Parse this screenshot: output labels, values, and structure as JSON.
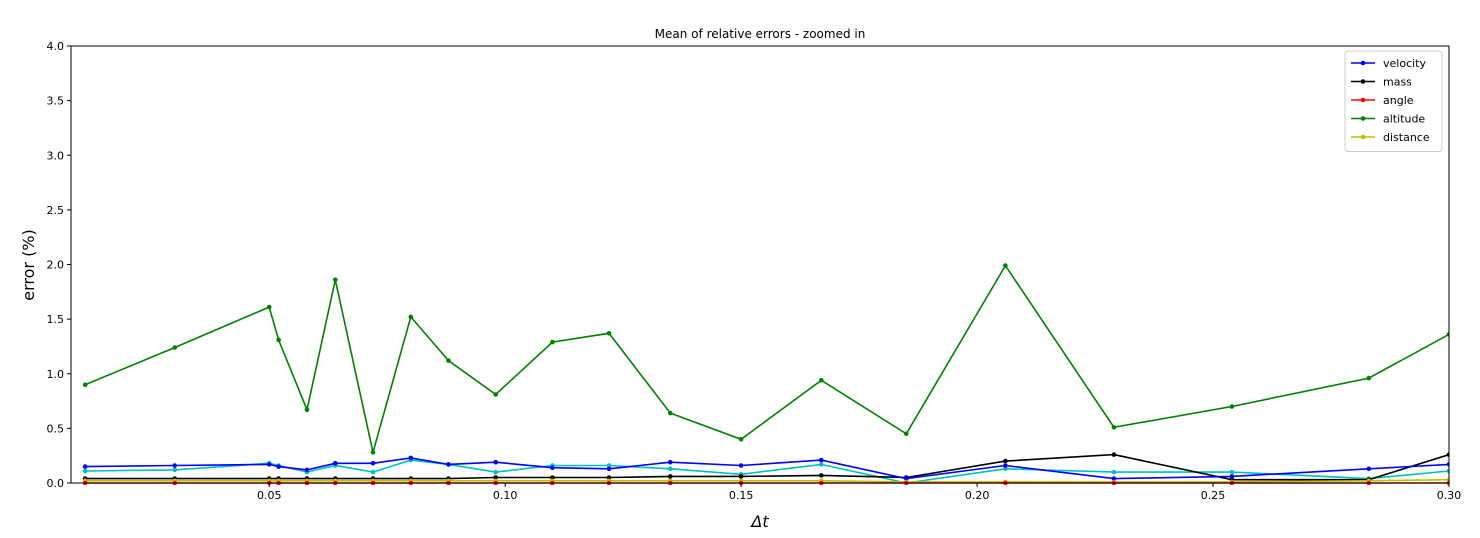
{
  "chart_data": {
    "type": "line",
    "title": "Mean of relative errors - zoomed in",
    "xlabel": "Δt",
    "ylabel": "error (%)",
    "xlim": [
      0.008,
      0.3
    ],
    "ylim": [
      0.0,
      4.0
    ],
    "xticks": [
      0.05,
      0.1,
      0.15,
      0.2,
      0.25,
      0.3
    ],
    "xtick_labels": [
      "0.05",
      "0.10",
      "0.15",
      "0.20",
      "0.25",
      "0.30"
    ],
    "yticks": [
      0.0,
      0.5,
      1.0,
      1.5,
      2.0,
      2.5,
      3.0,
      3.5,
      4.0
    ],
    "ytick_labels": [
      "0.0",
      "0.5",
      "1.0",
      "1.5",
      "2.0",
      "2.5",
      "3.0",
      "3.5",
      "4.0"
    ],
    "grid": false,
    "legend_position": "top-right",
    "x": [
      0.011,
      0.03,
      0.05,
      0.052,
      0.058,
      0.064,
      0.072,
      0.08,
      0.088,
      0.098,
      0.11,
      0.122,
      0.135,
      0.15,
      0.167,
      0.185,
      0.206,
      0.229,
      0.254,
      0.283,
      0.3
    ],
    "series": [
      {
        "name": "velocity",
        "color": "#0000ff",
        "in_legend": true,
        "values": [
          0.15,
          0.16,
          0.17,
          0.15,
          0.12,
          0.18,
          0.18,
          0.23,
          0.17,
          0.19,
          0.14,
          0.13,
          0.19,
          0.16,
          0.21,
          0.04,
          0.16,
          0.04,
          0.06,
          0.13,
          0.17
        ]
      },
      {
        "name": "mass",
        "color": "#000000",
        "in_legend": true,
        "values": [
          0.04,
          0.04,
          0.04,
          0.04,
          0.04,
          0.04,
          0.04,
          0.04,
          0.04,
          0.05,
          0.05,
          0.05,
          0.06,
          0.06,
          0.07,
          0.05,
          0.2,
          0.26,
          0.03,
          0.03,
          0.26
        ]
      },
      {
        "name": "angle",
        "color": "#ff0000",
        "in_legend": true,
        "values": [
          0.0,
          0.0,
          0.0,
          0.0,
          0.0,
          0.0,
          0.0,
          0.0,
          0.0,
          0.0,
          0.0,
          0.0,
          0.0,
          0.0,
          0.0,
          0.0,
          0.0,
          0.0,
          0.0,
          0.0,
          0.0
        ]
      },
      {
        "name": "altitude",
        "color": "#008000",
        "in_legend": true,
        "values": [
          0.9,
          1.24,
          1.61,
          1.31,
          0.67,
          1.86,
          0.28,
          1.52,
          1.12,
          0.81,
          1.29,
          1.37,
          0.64,
          0.4,
          0.94,
          0.45,
          1.99,
          0.51,
          0.7,
          0.96,
          1.36
        ]
      },
      {
        "name": "distance",
        "color": "#bfbf00",
        "in_legend": true,
        "values": [
          0.02,
          0.02,
          0.02,
          0.02,
          0.02,
          0.02,
          0.02,
          0.02,
          0.02,
          0.02,
          0.02,
          0.02,
          0.02,
          0.02,
          0.02,
          0.01,
          0.01,
          0.01,
          0.01,
          0.02,
          0.03
        ]
      },
      {
        "name": "",
        "color": "#00bfbf",
        "in_legend": false,
        "values": [
          0.11,
          0.12,
          0.18,
          0.16,
          0.1,
          0.16,
          0.1,
          0.21,
          0.17,
          0.1,
          0.16,
          0.16,
          0.13,
          0.08,
          0.17,
          0.0,
          0.13,
          0.1,
          0.1,
          0.04,
          0.11
        ]
      }
    ]
  }
}
